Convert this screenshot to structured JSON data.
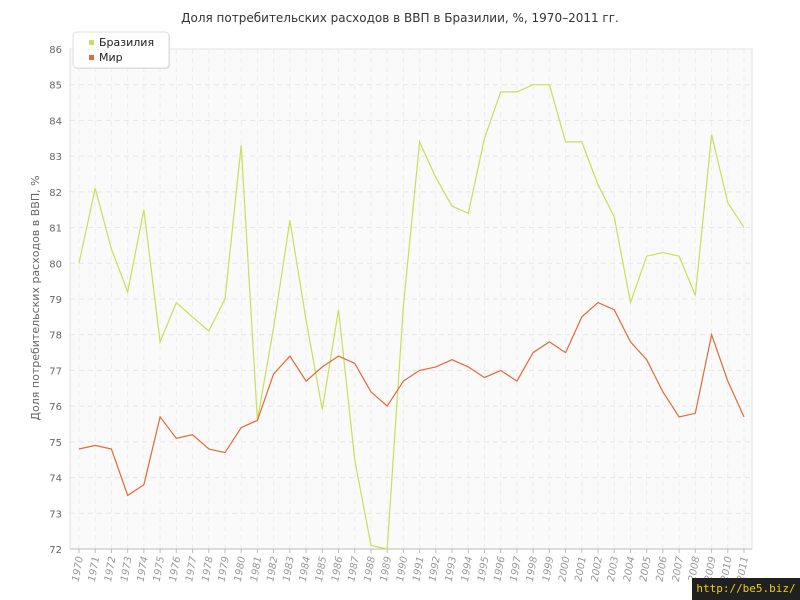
{
  "chart_data": {
    "type": "line",
    "title": "Доля потребительских расходов в ВВП в Бразилии, %, 1970–2011 гг.",
    "ylabel": "Доля потребительских расходов в ВВП, %",
    "xlabel": "",
    "ylim": [
      72,
      86
    ],
    "yticks": [
      72,
      73,
      74,
      75,
      76,
      77,
      78,
      79,
      80,
      81,
      82,
      83,
      84,
      85,
      86
    ],
    "grid": true,
    "legend_position": "top-left",
    "x": [
      "1970",
      "1971",
      "1972",
      "1973",
      "1974",
      "1975",
      "1976",
      "1977",
      "1978",
      "1979",
      "1980",
      "1981",
      "1982",
      "1983",
      "1984",
      "1985",
      "1986",
      "1987",
      "1988",
      "1989",
      "1990",
      "1991",
      "1992",
      "1993",
      "1994",
      "1995",
      "1996",
      "1997",
      "1998",
      "1999",
      "2000",
      "2001",
      "2002",
      "2003",
      "2004",
      "2005",
      "2006",
      "2007",
      "2008",
      "2009",
      "2010",
      "2011"
    ],
    "series": [
      {
        "name": "Бразилия",
        "color": "#c6e05a",
        "values": [
          80.0,
          82.1,
          80.4,
          79.2,
          81.5,
          77.8,
          78.9,
          78.5,
          78.1,
          79.0,
          83.3,
          75.6,
          78.2,
          81.2,
          78.4,
          75.9,
          78.7,
          74.5,
          72.1,
          72.0,
          78.8,
          83.4,
          82.4,
          81.6,
          81.4,
          83.5,
          84.8,
          84.8,
          85.0,
          85.0,
          83.4,
          83.4,
          82.2,
          81.3,
          78.9,
          80.2,
          80.3,
          80.2,
          79.1,
          83.6,
          81.7,
          81.0
        ]
      },
      {
        "name": "Мир",
        "color": "#e06a3a",
        "values": [
          74.8,
          74.9,
          74.8,
          73.5,
          73.8,
          75.7,
          75.1,
          75.2,
          74.8,
          74.7,
          75.4,
          75.6,
          76.9,
          77.4,
          76.7,
          77.1,
          77.4,
          77.2,
          76.4,
          76.0,
          76.7,
          77.0,
          77.1,
          77.3,
          77.1,
          76.8,
          77.0,
          76.7,
          77.5,
          77.8,
          77.5,
          78.5,
          78.9,
          78.7,
          77.8,
          77.3,
          76.4,
          75.7,
          75.8,
          78.0,
          76.7,
          75.7
        ]
      }
    ]
  },
  "watermark": "http://be5.biz/"
}
